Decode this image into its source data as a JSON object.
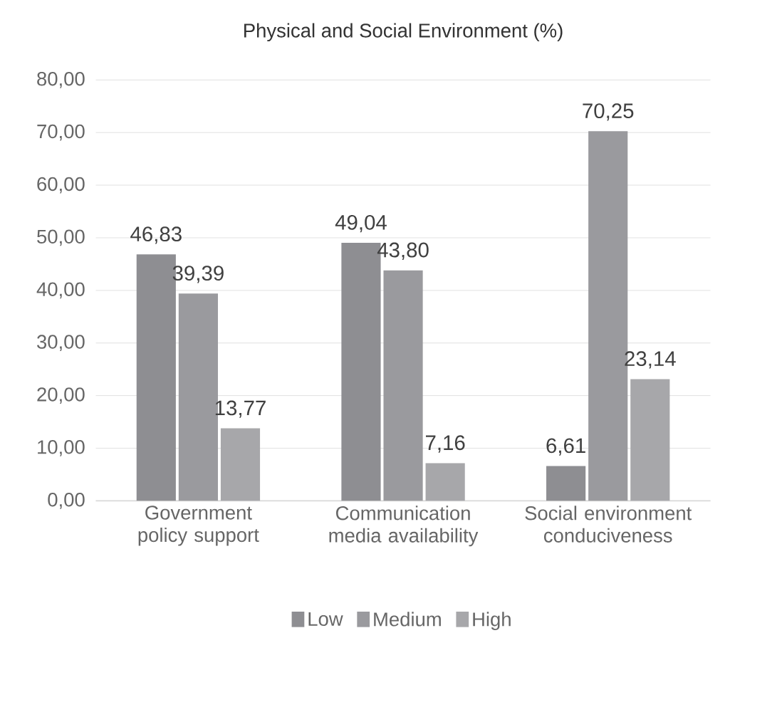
{
  "chart_data": {
    "type": "bar",
    "title": "Physical and Social Environment (%)",
    "categories": [
      "Government policy support",
      "Communication media availability",
      "Social environment conduciveness"
    ],
    "series": [
      {
        "name": "Low",
        "color": "#8e8e92",
        "values": [
          46.83,
          49.04,
          6.61
        ],
        "value_labels": [
          "46,83",
          "49,04",
          "6,61"
        ]
      },
      {
        "name": "Medium",
        "color": "#9a9a9e",
        "values": [
          39.39,
          43.8,
          70.25
        ],
        "value_labels": [
          "39,39",
          "43,80",
          "70,25"
        ]
      },
      {
        "name": "High",
        "color": "#a7a7aa",
        "values": [
          13.77,
          7.16,
          23.14
        ],
        "value_labels": [
          "13,77",
          "7,16",
          "23,14"
        ]
      }
    ],
    "ylim": [
      0,
      80
    ],
    "yticks": [
      {
        "value": 0,
        "label": "0,00"
      },
      {
        "value": 10,
        "label": "10,00"
      },
      {
        "value": 20,
        "label": "20,00"
      },
      {
        "value": 30,
        "label": "30,00"
      },
      {
        "value": 40,
        "label": "40,00"
      },
      {
        "value": 50,
        "label": "50,00"
      },
      {
        "value": 60,
        "label": "60,00"
      },
      {
        "value": 70,
        "label": "70,00"
      },
      {
        "value": 80,
        "label": "80,00"
      }
    ],
    "grid": "y",
    "legend": "bottom"
  }
}
